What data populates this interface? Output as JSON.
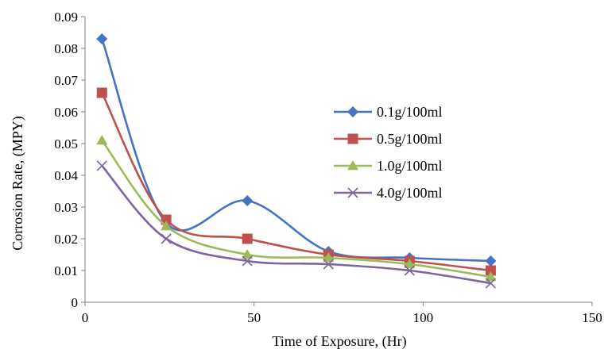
{
  "chart_data": {
    "type": "line",
    "xlabel": "Time of Exposure, (Hr)",
    "ylabel": "Corrosion Rate, (MPY)",
    "xlim": [
      0,
      150
    ],
    "ylim": [
      0,
      0.09
    ],
    "x_ticks": [
      "0",
      "50",
      "100",
      "150"
    ],
    "y_ticks": [
      "0",
      "0.01",
      "0.02",
      "0.03",
      "0.04",
      "0.05",
      "0.06",
      "0.07",
      "0.08",
      "0.09"
    ],
    "x": [
      5,
      24,
      48,
      72,
      96,
      120
    ],
    "series": [
      {
        "name": "0.1g/100ml",
        "values": [
          0.083,
          0.025,
          0.032,
          0.016,
          0.014,
          0.013
        ],
        "color": "#4472C4",
        "marker": "diamond"
      },
      {
        "name": "0.5g/100ml",
        "values": [
          0.066,
          0.026,
          0.02,
          0.015,
          0.013,
          0.01
        ],
        "color": "#C0504D",
        "marker": "square"
      },
      {
        "name": "1.0g/100ml",
        "values": [
          0.051,
          0.024,
          0.015,
          0.014,
          0.012,
          0.008
        ],
        "color": "#9BBB59",
        "marker": "triangle"
      },
      {
        "name": "4.0g/100ml",
        "values": [
          0.043,
          0.02,
          0.013,
          0.012,
          0.01,
          0.006
        ],
        "color": "#8064A2",
        "marker": "x"
      }
    ],
    "grid": false,
    "legend_position": "right"
  }
}
